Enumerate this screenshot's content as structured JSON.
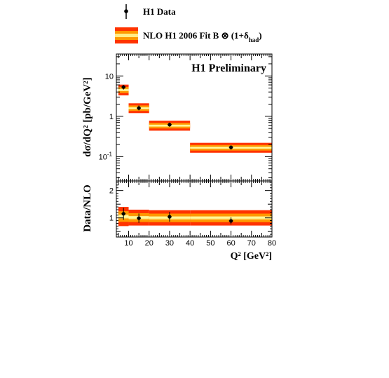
{
  "legend": {
    "data_label": "H1 Data",
    "nlo_label": "NLO H1 2006 Fit B  ⊗ (1+δ",
    "nlo_sub": "had",
    "nlo_close": ")"
  },
  "colors": {
    "band_outer": "#ff3300",
    "band_mid": "#ff9900",
    "band_inner": "#ffee88",
    "band_center": "#ffffaa",
    "marker": "#000000"
  },
  "chart_data": [
    {
      "type": "scatter",
      "title": "H1 Preliminary",
      "ylabel": "dσ/dQ² [pb/GeV²]",
      "yscale": "log",
      "ylim": [
        0.025,
        35
      ],
      "xlim": [
        4,
        80
      ],
      "yticks": [
        {
          "value": 0.1,
          "base": "10",
          "exp": "-1"
        },
        {
          "value": 1,
          "base": "1",
          "exp": ""
        },
        {
          "value": 10,
          "base": "10",
          "exp": ""
        }
      ],
      "points": [
        {
          "xlo": 5,
          "xhi": 10,
          "x": 7.5,
          "y": 5.3,
          "ylo": 4.6,
          "yhi": 6.0,
          "band_lo": 3.3,
          "band_hi": 6.1
        },
        {
          "xlo": 10,
          "xhi": 20,
          "x": 15,
          "y": 1.6,
          "ylo": 1.4,
          "yhi": 1.85,
          "band_lo": 1.2,
          "band_hi": 2.1
        },
        {
          "xlo": 20,
          "xhi": 40,
          "x": 30,
          "y": 0.62,
          "ylo": 0.55,
          "yhi": 0.7,
          "band_lo": 0.44,
          "band_hi": 0.78
        },
        {
          "xlo": 40,
          "xhi": 80,
          "x": 60,
          "y": 0.17,
          "ylo": 0.15,
          "yhi": 0.19,
          "band_lo": 0.125,
          "band_hi": 0.22
        }
      ]
    },
    {
      "type": "scatter",
      "ylabel": "Data/NLO",
      "xlabel": "Q² [GeV²]",
      "ylim": [
        0.3,
        2.35
      ],
      "xlim": [
        4,
        80
      ],
      "yticks": [
        1,
        2
      ],
      "xticks": [
        10,
        20,
        30,
        40,
        50,
        60,
        70,
        80
      ],
      "points": [
        {
          "xlo": 5,
          "xhi": 10,
          "x": 7.5,
          "y": 1.15,
          "ylo": 0.93,
          "yhi": 1.37,
          "band_lo": 0.7,
          "band_hi": 1.4
        },
        {
          "xlo": 10,
          "xhi": 20,
          "x": 15,
          "y": 0.99,
          "ylo": 0.82,
          "yhi": 1.16,
          "band_lo": 0.72,
          "band_hi": 1.3
        },
        {
          "xlo": 20,
          "xhi": 40,
          "x": 30,
          "y": 1.04,
          "ylo": 0.86,
          "yhi": 1.22,
          "band_lo": 0.72,
          "band_hi": 1.28
        },
        {
          "xlo": 40,
          "xhi": 80,
          "x": 60,
          "y": 0.89,
          "ylo": 0.76,
          "yhi": 1.02,
          "band_lo": 0.72,
          "band_hi": 1.28
        }
      ]
    }
  ]
}
